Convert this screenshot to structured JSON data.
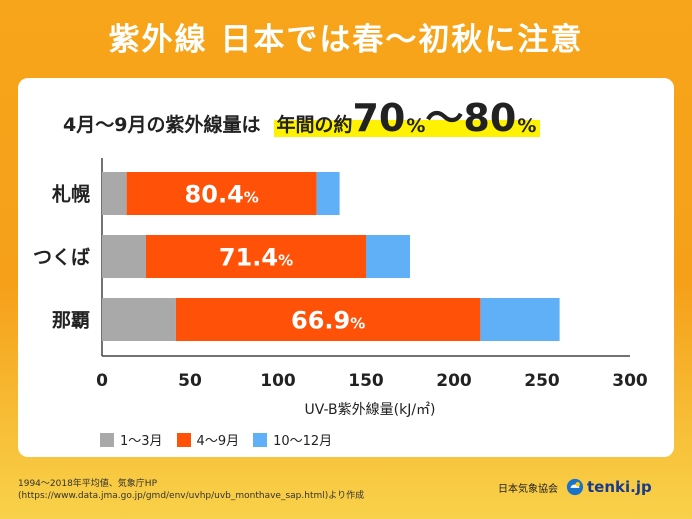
{
  "title": "紫外線 日本では春〜初秋に注意",
  "subtitle": {
    "prefix": "4月〜9月の紫外線量は",
    "hl_text": "年間の約",
    "num1": "70",
    "pct1": "%",
    "sep": "〜",
    "num2": "80",
    "pct2": "%"
  },
  "chart_data": {
    "type": "bar",
    "orientation": "horizontal",
    "stacked": true,
    "categories": [
      "札幌",
      "つくば",
      "那覇"
    ],
    "series": [
      {
        "name": "1〜3月",
        "color": "#a9a9a9",
        "values": [
          14,
          25,
          42
        ]
      },
      {
        "name": "4〜9月",
        "color": "#ff5208",
        "values": [
          108,
          125,
          173
        ]
      },
      {
        "name": "10〜12月",
        "color": "#5fb0f7",
        "values": [
          13,
          25,
          45
        ]
      }
    ],
    "data_labels": [
      {
        "value": "80.4",
        "unit": "%"
      },
      {
        "value": "71.4",
        "unit": "%"
      },
      {
        "value": "66.9",
        "unit": "%"
      }
    ],
    "xlabel": "UV-B紫外線量(kJ/㎡)",
    "ylabel": "",
    "xlim": [
      0,
      300
    ],
    "xticks": [
      "0",
      "50",
      "100",
      "150",
      "200",
      "250",
      "300"
    ],
    "grid": false,
    "legend": "bottom-left"
  },
  "footnote": "1994〜2018年平均値、気象庁HP\n(https://www.data.jma.go.jp/gmd/env/uvhp/uvb_monthave_sap.html)より作成",
  "credit": {
    "org": "日本気象協会",
    "brand": "tenki.jp",
    "logo_icon": "tenki-logo-icon"
  }
}
